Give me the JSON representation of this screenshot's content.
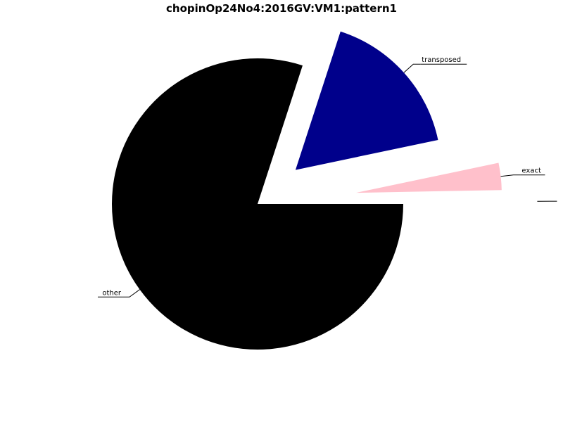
{
  "chart_data": {
    "type": "pie",
    "title": "chopinOp24No4:2016GV:VM1:pattern1",
    "slices": [
      {
        "label": "other",
        "value": 0.8,
        "color": "#000000",
        "exploded": false
      },
      {
        "label": "transposed",
        "value": 0.167,
        "color": "#00008b",
        "exploded": true
      },
      {
        "label": "exact",
        "value": 0.03,
        "color": "#ffc0cb",
        "exploded": true
      },
      {
        "label": "",
        "value": 0.003,
        "color": "#ffffff",
        "exploded": true
      }
    ]
  }
}
